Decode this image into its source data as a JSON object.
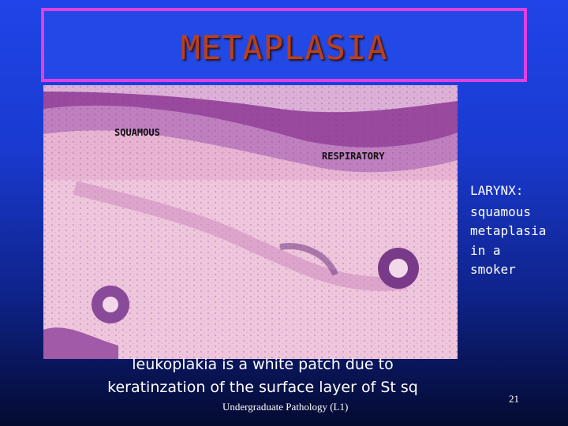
{
  "header": {
    "title": "METAPLASIA"
  },
  "image": {
    "labels": [
      "SQUAMOUS",
      "RESPIRATORY"
    ]
  },
  "side_text": [
    "LARYNX:",
    "squamous",
    "metaplasia",
    "in a",
    "smoker"
  ],
  "caption": [
    "leukoplakia is a white patch due to",
    "keratinzation of the surface layer  of St sq"
  ],
  "footer": "Undergraduate Pathology (L1)",
  "page_number": "21"
}
